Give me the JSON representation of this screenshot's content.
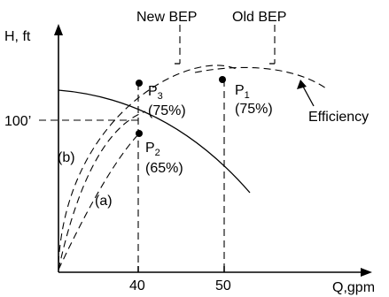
{
  "axes": {
    "y_label": "H, ft",
    "x_label": "Q,gpm",
    "y_tick": "100’",
    "x_ticks": [
      "40",
      "50"
    ]
  },
  "bep": {
    "new": "New BEP",
    "old": "Old BEP"
  },
  "points": [
    {
      "id": "P1",
      "letter": "P",
      "sub": "1",
      "eff": "(75%)"
    },
    {
      "id": "P2",
      "letter": "P",
      "sub": "2",
      "eff": "(65%)"
    },
    {
      "id": "P3",
      "letter": "P",
      "sub": "3",
      "eff": "(75%)"
    }
  ],
  "curves": {
    "efficiency": "Efficiency",
    "system_a": "(a)",
    "system_b": "(b)"
  }
}
